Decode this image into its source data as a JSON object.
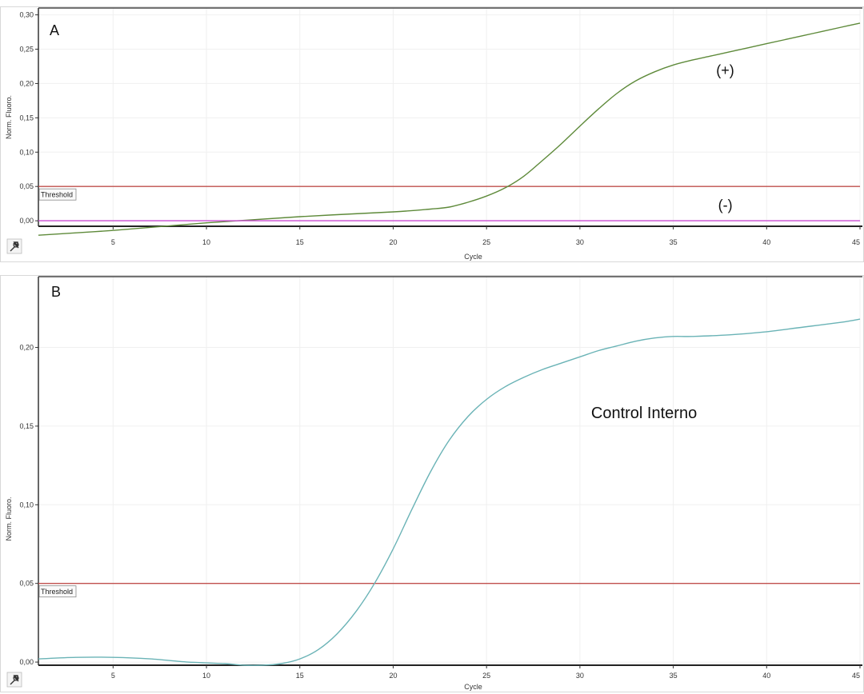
{
  "chart_data": [
    {
      "type": "line",
      "panel_label": "A",
      "xlabel": "Cycle",
      "ylabel": "Norm. Fluoro.",
      "xlim": [
        1,
        45
      ],
      "ylim": [
        -0.008,
        0.31
      ],
      "xticks": [
        5,
        10,
        15,
        20,
        25,
        30,
        35,
        40,
        45
      ],
      "xtick_labels": [
        "5",
        "10",
        "15",
        "20",
        "25",
        "30",
        "35",
        "40",
        "45"
      ],
      "yticks": [
        0,
        0.05,
        0.1,
        0.15,
        0.2,
        0.25,
        0.3
      ],
      "ytick_labels": [
        "0,00",
        "0,05",
        "0,10",
        "0,15",
        "0,20",
        "0,25",
        "0,30"
      ],
      "grid": true,
      "threshold": {
        "value": 0.05,
        "label": "Threshold",
        "color": "#c0504d"
      },
      "series": [
        {
          "name": "(+)",
          "color": "#5e8a3a",
          "x": [
            1,
            5,
            10,
            15,
            20,
            22,
            23,
            24,
            25,
            26,
            27,
            28,
            29,
            30,
            31,
            32,
            33,
            34,
            35,
            36,
            37,
            38,
            39,
            40,
            41,
            42,
            43,
            44,
            45
          ],
          "y": [
            -0.021,
            -0.014,
            -0.003,
            0.006,
            0.013,
            0.017,
            0.02,
            0.027,
            0.036,
            0.048,
            0.065,
            0.088,
            0.112,
            0.138,
            0.163,
            0.186,
            0.204,
            0.217,
            0.227,
            0.234,
            0.24,
            0.246,
            0.252,
            0.258,
            0.264,
            0.27,
            0.276,
            0.282,
            0.288
          ]
        },
        {
          "name": "(-)",
          "color": "#c94bd1",
          "x": [
            1,
            45
          ],
          "y": [
            0.0,
            0.0
          ]
        }
      ],
      "annotations": [
        {
          "text": "(+)",
          "x": 37.3,
          "y": 0.212
        },
        {
          "text": "(-)",
          "x": 37.4,
          "y": 0.016
        }
      ]
    },
    {
      "type": "line",
      "panel_label": "B",
      "xlabel": "Cycle",
      "ylabel": "Norm. Fluoro.",
      "xlim": [
        1,
        45
      ],
      "ylim": [
        -0.002,
        0.245
      ],
      "xticks": [
        5,
        10,
        15,
        20,
        25,
        30,
        35,
        40,
        45
      ],
      "xtick_labels": [
        "5",
        "10",
        "15",
        "20",
        "25",
        "30",
        "35",
        "40",
        "45"
      ],
      "yticks": [
        0,
        0.05,
        0.1,
        0.15,
        0.2
      ],
      "ytick_labels": [
        "0,00",
        "0,05",
        "0,10",
        "0,15",
        "0,20"
      ],
      "grid": true,
      "threshold": {
        "value": 0.05,
        "label": "Threshold",
        "color": "#c0504d"
      },
      "series": [
        {
          "name": "Control Interno",
          "color": "#6ab3b6",
          "x": [
            1,
            3,
            5,
            7,
            9,
            11,
            12,
            13,
            14,
            15,
            16,
            17,
            18,
            19,
            20,
            21,
            22,
            23,
            24,
            25,
            26,
            27,
            28,
            29,
            30,
            31,
            32,
            33,
            34,
            35,
            36,
            38,
            40,
            42,
            44,
            45
          ],
          "y": [
            0.002,
            0.003,
            0.003,
            0.002,
            0.0,
            -0.001,
            -0.002,
            -0.002,
            -0.001,
            0.002,
            0.008,
            0.018,
            0.032,
            0.05,
            0.072,
            0.097,
            0.121,
            0.141,
            0.156,
            0.167,
            0.175,
            0.181,
            0.186,
            0.19,
            0.194,
            0.198,
            0.201,
            0.204,
            0.206,
            0.207,
            0.207,
            0.208,
            0.21,
            0.213,
            0.216,
            0.218
          ]
        }
      ],
      "annotations": [
        {
          "text": "Control Interno",
          "x": 30.6,
          "y": 0.155
        }
      ]
    }
  ]
}
